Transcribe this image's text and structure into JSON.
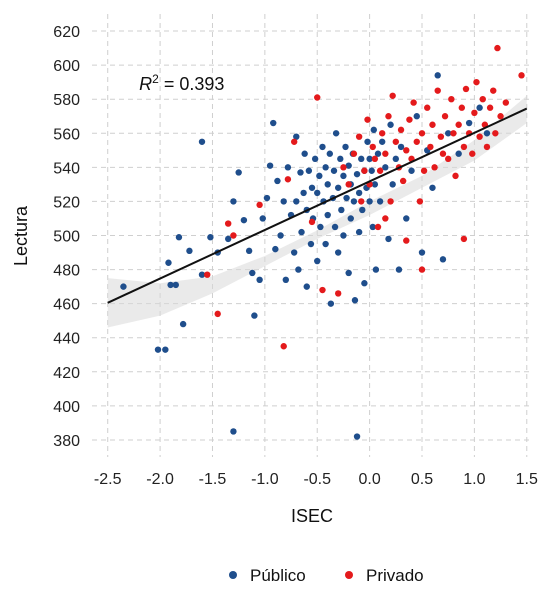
{
  "chart_data": {
    "type": "scatter",
    "xlabel": "ISEC",
    "ylabel": "Lectura",
    "xlim": [
      -2.65,
      1.55
    ],
    "ylim": [
      370,
      630
    ],
    "xticks": [
      -2.5,
      -2.0,
      -1.5,
      -1.0,
      -0.5,
      0.0,
      0.5,
      1.0,
      1.5
    ],
    "yticks": [
      380,
      400,
      420,
      440,
      460,
      480,
      500,
      520,
      540,
      560,
      580,
      600,
      620
    ],
    "xtick_labels": [
      "-2.5",
      "-2.0",
      "-1.5",
      "-1.0",
      "-0.5",
      "0.0",
      "0.5",
      "1.0",
      "1.5"
    ],
    "ytick_labels": [
      "380",
      "400",
      "420",
      "440",
      "460",
      "480",
      "500",
      "520",
      "540",
      "560",
      "580",
      "600",
      "620"
    ],
    "grid": true,
    "legend_position": "bottom",
    "annotation": {
      "base": "R",
      "sup": "2",
      "rest": " = 0.393",
      "x": -2.2,
      "y": 589
    },
    "fit_line": {
      "x": [
        -2.5,
        1.5
      ],
      "y": [
        460.5,
        574.5
      ]
    },
    "confidence_band": {
      "x": [
        -2.5,
        -2.0,
        -1.5,
        -1.0,
        -0.5,
        0.0,
        0.5,
        1.0,
        1.5
      ],
      "upper": [
        475,
        472,
        476,
        488,
        503,
        520,
        535,
        556,
        582
      ],
      "lower": [
        446,
        453,
        466,
        482,
        498,
        512,
        528,
        544,
        566
      ]
    },
    "series": [
      {
        "name": "Público",
        "color": "#1f4e8c",
        "points": [
          [
            -2.35,
            470
          ],
          [
            -2.02,
            433
          ],
          [
            -1.95,
            433
          ],
          [
            -1.92,
            484
          ],
          [
            -1.9,
            471
          ],
          [
            -1.85,
            471
          ],
          [
            -1.82,
            499
          ],
          [
            -1.78,
            448
          ],
          [
            -1.72,
            491
          ],
          [
            -1.6,
            555
          ],
          [
            -1.6,
            477
          ],
          [
            -1.52,
            499
          ],
          [
            -1.45,
            490
          ],
          [
            -1.35,
            498
          ],
          [
            -1.3,
            520
          ],
          [
            -1.25,
            537
          ],
          [
            -1.3,
            385
          ],
          [
            -1.2,
            509
          ],
          [
            -1.15,
            491
          ],
          [
            -1.12,
            478
          ],
          [
            -1.1,
            453
          ],
          [
            -1.05,
            474
          ],
          [
            -1.02,
            510
          ],
          [
            -0.98,
            522
          ],
          [
            -0.95,
            541
          ],
          [
            -0.92,
            566
          ],
          [
            -0.9,
            492
          ],
          [
            -0.88,
            532
          ],
          [
            -0.85,
            500
          ],
          [
            -0.82,
            520
          ],
          [
            -0.8,
            474
          ],
          [
            -0.78,
            540
          ],
          [
            -0.75,
            512
          ],
          [
            -0.72,
            490
          ],
          [
            -0.7,
            558
          ],
          [
            -0.7,
            520
          ],
          [
            -0.68,
            480
          ],
          [
            -0.66,
            537
          ],
          [
            -0.65,
            502
          ],
          [
            -0.63,
            525
          ],
          [
            -0.62,
            548
          ],
          [
            -0.6,
            470
          ],
          [
            -0.6,
            515
          ],
          [
            -0.58,
            538
          ],
          [
            -0.56,
            495
          ],
          [
            -0.55,
            528
          ],
          [
            -0.54,
            510
          ],
          [
            -0.52,
            545
          ],
          [
            -0.5,
            525
          ],
          [
            -0.5,
            485
          ],
          [
            -0.48,
            535
          ],
          [
            -0.47,
            505
          ],
          [
            -0.45,
            552
          ],
          [
            -0.44,
            520
          ],
          [
            -0.42,
            540
          ],
          [
            -0.42,
            495
          ],
          [
            -0.4,
            530
          ],
          [
            -0.4,
            512
          ],
          [
            -0.38,
            548
          ],
          [
            -0.37,
            460
          ],
          [
            -0.35,
            522
          ],
          [
            -0.34,
            538
          ],
          [
            -0.33,
            505
          ],
          [
            -0.32,
            560
          ],
          [
            -0.3,
            528
          ],
          [
            -0.3,
            490
          ],
          [
            -0.28,
            545
          ],
          [
            -0.27,
            515
          ],
          [
            -0.25,
            535
          ],
          [
            -0.25,
            500
          ],
          [
            -0.23,
            552
          ],
          [
            -0.22,
            522
          ],
          [
            -0.2,
            541
          ],
          [
            -0.2,
            478
          ],
          [
            -0.18,
            530
          ],
          [
            -0.18,
            510
          ],
          [
            -0.16,
            548
          ],
          [
            -0.15,
            520
          ],
          [
            -0.14,
            462
          ],
          [
            -0.12,
            536
          ],
          [
            -0.12,
            382
          ],
          [
            -0.1,
            525
          ],
          [
            -0.1,
            502
          ],
          [
            -0.08,
            545
          ],
          [
            -0.07,
            515
          ],
          [
            -0.05,
            538
          ],
          [
            -0.05,
            472
          ],
          [
            -0.03,
            528
          ],
          [
            -0.02,
            555
          ],
          [
            0.0,
            520
          ],
          [
            0.0,
            545
          ],
          [
            0.02,
            538
          ],
          [
            0.03,
            505
          ],
          [
            0.04,
            562
          ],
          [
            0.05,
            530
          ],
          [
            0.06,
            480
          ],
          [
            0.08,
            548
          ],
          [
            0.1,
            520
          ],
          [
            0.12,
            555
          ],
          [
            0.15,
            540
          ],
          [
            0.18,
            498
          ],
          [
            0.2,
            565
          ],
          [
            0.22,
            530
          ],
          [
            0.25,
            545
          ],
          [
            0.28,
            480
          ],
          [
            0.3,
            552
          ],
          [
            0.35,
            510
          ],
          [
            0.4,
            538
          ],
          [
            0.45,
            570
          ],
          [
            0.5,
            490
          ],
          [
            0.55,
            550
          ],
          [
            0.6,
            528
          ],
          [
            0.65,
            594
          ],
          [
            0.7,
            486
          ],
          [
            0.75,
            560
          ],
          [
            0.85,
            548
          ],
          [
            0.95,
            566
          ],
          [
            1.05,
            575
          ],
          [
            1.12,
            560
          ]
        ]
      },
      {
        "name": "Privado",
        "color": "#e41a1c",
        "points": [
          [
            -1.55,
            477
          ],
          [
            -1.45,
            454
          ],
          [
            -1.35,
            507
          ],
          [
            -1.3,
            500
          ],
          [
            -1.05,
            518
          ],
          [
            -0.82,
            435
          ],
          [
            -0.78,
            533
          ],
          [
            -0.72,
            555
          ],
          [
            -0.55,
            508
          ],
          [
            -0.5,
            581
          ],
          [
            -0.45,
            468
          ],
          [
            -0.3,
            466
          ],
          [
            -0.25,
            540
          ],
          [
            -0.2,
            530
          ],
          [
            -0.15,
            548
          ],
          [
            -0.1,
            558
          ],
          [
            -0.08,
            520
          ],
          [
            -0.05,
            538
          ],
          [
            -0.02,
            568
          ],
          [
            0.0,
            530
          ],
          [
            0.03,
            552
          ],
          [
            0.05,
            545
          ],
          [
            0.08,
            505
          ],
          [
            0.1,
            538
          ],
          [
            0.12,
            560
          ],
          [
            0.15,
            548
          ],
          [
            0.18,
            570
          ],
          [
            0.2,
            520
          ],
          [
            0.22,
            582
          ],
          [
            0.25,
            555
          ],
          [
            0.28,
            540
          ],
          [
            0.3,
            562
          ],
          [
            0.32,
            532
          ],
          [
            0.35,
            550
          ],
          [
            0.38,
            568
          ],
          [
            0.4,
            545
          ],
          [
            0.42,
            578
          ],
          [
            0.45,
            555
          ],
          [
            0.48,
            520
          ],
          [
            0.5,
            560
          ],
          [
            0.52,
            538
          ],
          [
            0.55,
            575
          ],
          [
            0.58,
            552
          ],
          [
            0.6,
            565
          ],
          [
            0.62,
            540
          ],
          [
            0.65,
            585
          ],
          [
            0.68,
            558
          ],
          [
            0.7,
            548
          ],
          [
            0.72,
            570
          ],
          [
            0.75,
            545
          ],
          [
            0.78,
            580
          ],
          [
            0.8,
            560
          ],
          [
            0.82,
            535
          ],
          [
            0.85,
            565
          ],
          [
            0.88,
            575
          ],
          [
            0.9,
            552
          ],
          [
            0.92,
            586
          ],
          [
            0.95,
            560
          ],
          [
            0.98,
            548
          ],
          [
            1.0,
            572
          ],
          [
            1.02,
            590
          ],
          [
            1.05,
            558
          ],
          [
            1.08,
            580
          ],
          [
            1.1,
            565
          ],
          [
            1.12,
            552
          ],
          [
            1.15,
            575
          ],
          [
            1.18,
            585
          ],
          [
            1.2,
            560
          ],
          [
            1.22,
            610
          ],
          [
            1.25,
            570
          ],
          [
            1.3,
            578
          ],
          [
            1.45,
            594
          ],
          [
            0.5,
            480
          ],
          [
            0.35,
            497
          ],
          [
            0.15,
            510
          ],
          [
            0.9,
            498
          ]
        ]
      }
    ]
  }
}
